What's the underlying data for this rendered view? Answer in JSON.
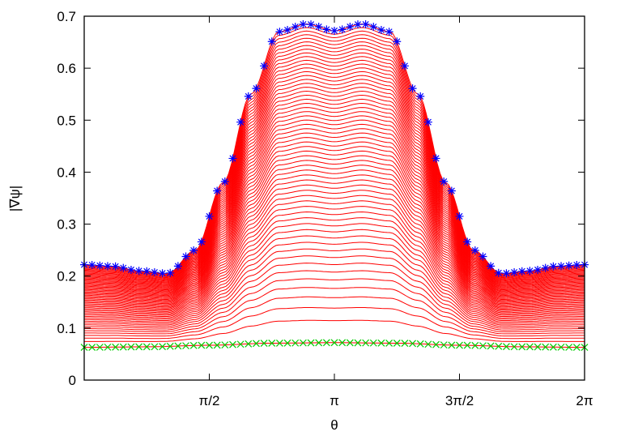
{
  "chart_data": {
    "type": "line",
    "title": "",
    "xlabel": "θ",
    "ylabel": "|∇ψ|",
    "xlim": [
      0,
      6.2832
    ],
    "ylim": [
      0,
      0.7
    ],
    "grid": false,
    "legend": "none",
    "x_ticks": [
      {
        "value": 1.5708,
        "label": "π/2"
      },
      {
        "value": 3.1416,
        "label": "π"
      },
      {
        "value": 4.7124,
        "label": "3π/2"
      },
      {
        "value": 6.2832,
        "label": "2π"
      }
    ],
    "y_ticks": [
      {
        "value": 0,
        "label": "0"
      },
      {
        "value": 0.1,
        "label": "0.1"
      },
      {
        "value": 0.2,
        "label": "0.2"
      },
      {
        "value": 0.3,
        "label": "0.3"
      },
      {
        "value": 0.4,
        "label": "0.4"
      },
      {
        "value": 0.5,
        "label": "0.5"
      },
      {
        "value": 0.6,
        "label": "0.6"
      },
      {
        "value": 0.7,
        "label": "0.7"
      }
    ],
    "colors": {
      "family": "#ff0000",
      "top_marker": "#0000ff",
      "bottom_marker": "#00cc00"
    },
    "series": [
      {
        "role": "final-profile",
        "marker": "asterisk",
        "x": [
          0,
          0.3491,
          0.6981,
          1.0472,
          1.3963,
          1.7453,
          2.0944,
          2.4435,
          2.7925,
          3.1416,
          3.4907,
          3.8397,
          4.1888,
          4.5379,
          4.8869,
          5.236,
          5.5851,
          5.9341,
          6.2832
        ],
        "y": [
          0.222,
          0.219,
          0.21,
          0.205,
          0.25,
          0.38,
          0.55,
          0.67,
          0.685,
          0.672,
          0.685,
          0.67,
          0.55,
          0.38,
          0.25,
          0.205,
          0.21,
          0.219,
          0.222
        ]
      },
      {
        "role": "initial-profile",
        "marker": "x",
        "x": [
          0,
          0.7854,
          1.5708,
          2.3562,
          3.1416,
          3.927,
          4.7124,
          5.4978,
          6.2832
        ],
        "y": [
          0.063,
          0.064,
          0.067,
          0.071,
          0.072,
          0.071,
          0.067,
          0.064,
          0.063
        ]
      }
    ],
    "family": {
      "count": 60,
      "from": "initial-profile",
      "to": "final-profile"
    }
  }
}
